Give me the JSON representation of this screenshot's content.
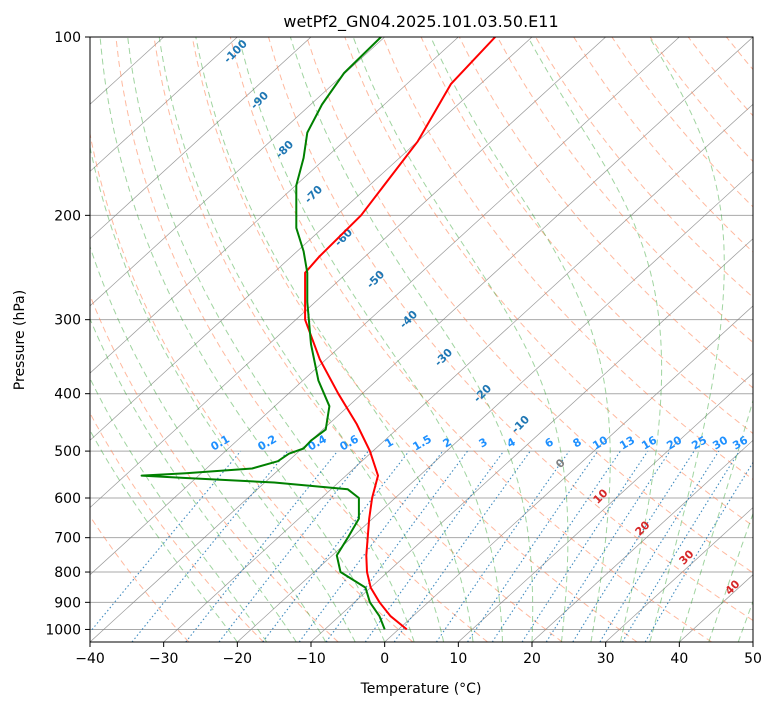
{
  "colors": {
    "temperature": "#ff0000",
    "dewpoint": "#008000",
    "dry_adiabat": "#ff7f50",
    "moist_adiabat": "#2ca02c",
    "mixing_ratio": "#1f77b4",
    "isotherm": "#808080",
    "isobar": "#a9a9a9",
    "dry_label": "#d62728",
    "mixing_label": "#1e90ff"
  },
  "chart_data": {
    "type": "line",
    "title": "wetPf2_GN04.2025.101.03.50.E11",
    "xlabel": "Temperature (°C)",
    "ylabel": "Pressure (hPa)",
    "xlim": [
      -40,
      50
    ],
    "ylim": [
      1050,
      100
    ],
    "y_scale": "log",
    "grid": true,
    "x_ticks": [
      "−40",
      "−30",
      "−20",
      "−10",
      "0",
      "10",
      "20",
      "30",
      "40",
      "50"
    ],
    "x_tick_values": [
      -40,
      -30,
      -20,
      -10,
      0,
      10,
      20,
      30,
      40,
      50
    ],
    "y_ticks": [
      "100",
      "200",
      "300",
      "400",
      "500",
      "600",
      "700",
      "800",
      "900",
      "1000"
    ],
    "y_tick_values": [
      100,
      200,
      300,
      400,
      500,
      600,
      700,
      800,
      900,
      1000
    ],
    "series": [
      {
        "role": "temperature",
        "p": [
          1000,
          950,
          900,
          850,
          800,
          750,
          700,
          650,
          600,
          550,
          500,
          450,
          400,
          350,
          300,
          250,
          235,
          200,
          150,
          120,
          100
        ],
        "t": [
          3.0,
          0.8,
          -0.7,
          -1.9,
          -2.4,
          -2.5,
          -2.3,
          -2.1,
          -1.7,
          -0.9,
          -2.0,
          -3.8,
          -6.3,
          -8.8,
          -10.8,
          -10.8,
          -8.9,
          -3.2,
          4.5,
          9.0,
          15.0
        ]
      },
      {
        "role": "dewpoint",
        "p": [
          1000,
          950,
          900,
          850,
          800,
          750,
          700,
          650,
          600,
          580,
          565,
          555,
          550,
          545,
          535,
          520,
          505,
          495,
          480,
          460,
          420,
          380,
          330,
          280,
          250,
          230,
          210,
          195,
          178,
          160,
          145,
          130,
          115,
          100
        ],
        "t": [
          0,
          -0.7,
          -2.0,
          -2.6,
          -6.0,
          -6.5,
          -5.0,
          -3.5,
          -3.5,
          -5.0,
          -15.0,
          -27.0,
          -33.0,
          -27.0,
          -18.0,
          -14.5,
          -13.0,
          -11.0,
          -10.0,
          -8.0,
          -7.5,
          -9.0,
          -10.0,
          -10.5,
          -10.5,
          -11.0,
          -12.0,
          -12.0,
          -12.0,
          -11.0,
          -10.5,
          -8.5,
          -5.5,
          -0.5
        ]
      }
    ],
    "dry_adiabat_labels": [
      "0",
      "10",
      "20",
      "30",
      "40"
    ],
    "moist_adiabat_labels": [
      "-100",
      "-90",
      "-80",
      "-70",
      "-60",
      "-50",
      "-40",
      "-30",
      "-20",
      "-10"
    ],
    "mixing_ratio_labels": [
      "0.1",
      "0.2",
      "0.4",
      "0.6",
      "1",
      "1.5",
      "2",
      "3",
      "4",
      "6",
      "8",
      "10",
      "13",
      "16",
      "20",
      "25",
      "30",
      "36"
    ]
  }
}
